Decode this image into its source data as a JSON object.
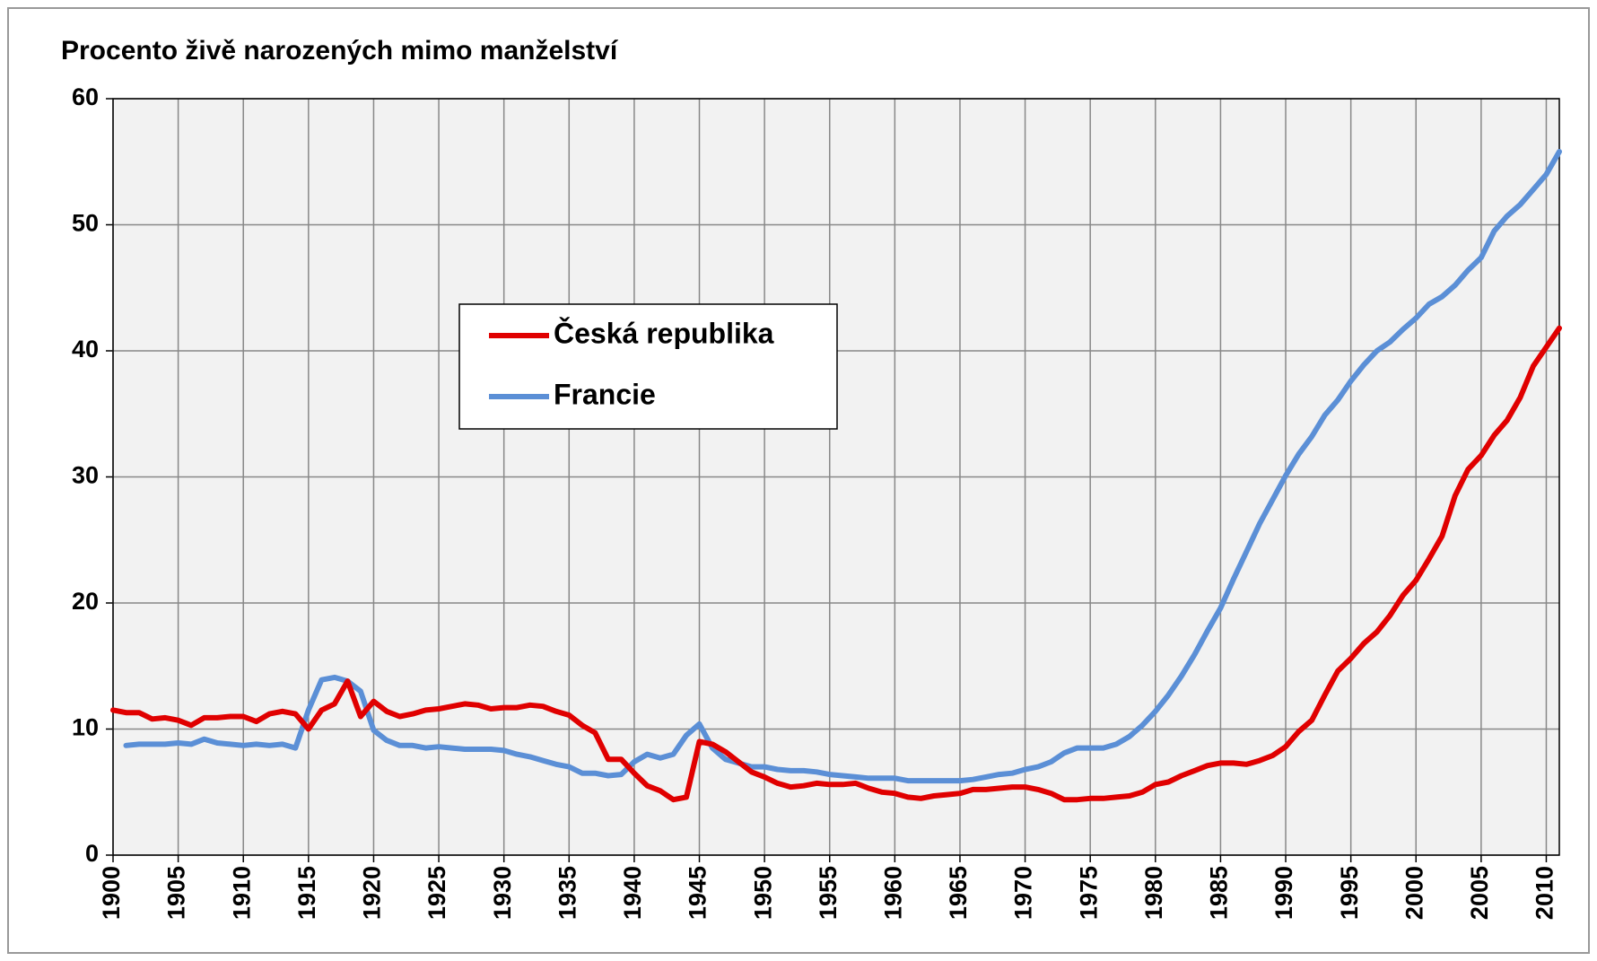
{
  "chart_data": {
    "type": "line",
    "title": "Procento živě narozených mimo manželství",
    "x": [
      1900,
      1901,
      1902,
      1903,
      1904,
      1905,
      1906,
      1907,
      1908,
      1909,
      1910,
      1911,
      1912,
      1913,
      1914,
      1915,
      1916,
      1917,
      1918,
      1919,
      1920,
      1921,
      1922,
      1923,
      1924,
      1925,
      1926,
      1927,
      1928,
      1929,
      1930,
      1931,
      1932,
      1933,
      1934,
      1935,
      1936,
      1937,
      1938,
      1939,
      1940,
      1941,
      1942,
      1943,
      1944,
      1945,
      1946,
      1947,
      1948,
      1949,
      1950,
      1951,
      1952,
      1953,
      1954,
      1955,
      1956,
      1957,
      1958,
      1959,
      1960,
      1961,
      1962,
      1963,
      1964,
      1965,
      1966,
      1967,
      1968,
      1969,
      1970,
      1971,
      1972,
      1973,
      1974,
      1975,
      1976,
      1977,
      1978,
      1979,
      1980,
      1981,
      1982,
      1983,
      1984,
      1985,
      1986,
      1987,
      1988,
      1989,
      1990,
      1991,
      1992,
      1993,
      1994,
      1995,
      1996,
      1997,
      1998,
      1999,
      2000,
      2001,
      2002,
      2003,
      2004,
      2005,
      2006,
      2007,
      2008,
      2009,
      2010,
      2011
    ],
    "series": [
      {
        "name": "Česká republika",
        "color": "#e00000",
        "values": [
          11.5,
          11.3,
          11.3,
          10.8,
          10.9,
          10.7,
          10.3,
          10.9,
          10.9,
          11.0,
          11.0,
          10.6,
          11.2,
          11.4,
          11.2,
          10.0,
          11.5,
          12.0,
          13.8,
          11.0,
          12.2,
          11.4,
          11.0,
          11.2,
          11.5,
          11.6,
          11.8,
          12.0,
          11.9,
          11.6,
          11.7,
          11.7,
          11.9,
          11.8,
          11.4,
          11.1,
          10.3,
          9.7,
          7.6,
          7.6,
          6.5,
          5.5,
          5.1,
          4.4,
          4.6,
          9.0,
          8.8,
          8.2,
          7.4,
          6.6,
          6.2,
          5.7,
          5.4,
          5.5,
          5.7,
          5.6,
          5.6,
          5.7,
          5.3,
          5.0,
          4.9,
          4.6,
          4.5,
          4.7,
          4.8,
          4.9,
          5.2,
          5.2,
          5.3,
          5.4,
          5.4,
          5.2,
          4.9,
          4.4,
          4.4,
          4.5,
          4.5,
          4.6,
          4.7,
          5.0,
          5.6,
          5.8,
          6.3,
          6.7,
          7.1,
          7.3,
          7.3,
          7.2,
          7.5,
          7.9,
          8.6,
          9.8,
          10.7,
          12.7,
          14.6,
          15.6,
          16.8,
          17.7,
          19.0,
          20.6,
          21.8,
          23.5,
          25.3,
          28.5,
          30.6,
          31.7,
          33.3,
          34.5,
          36.3,
          38.8,
          40.3,
          41.8
        ]
      },
      {
        "name": "Francie",
        "color": "#5b8fd6",
        "values": [
          null,
          8.7,
          8.8,
          8.8,
          8.8,
          8.9,
          8.8,
          9.2,
          8.9,
          8.8,
          8.7,
          8.8,
          8.7,
          8.8,
          8.5,
          11.5,
          13.9,
          14.1,
          13.8,
          13.0,
          9.9,
          9.1,
          8.7,
          8.7,
          8.5,
          8.6,
          8.5,
          8.4,
          8.4,
          8.4,
          8.3,
          8.0,
          7.8,
          7.5,
          7.2,
          7.0,
          6.5,
          6.5,
          6.3,
          6.4,
          7.4,
          8.0,
          7.7,
          8.0,
          9.5,
          10.4,
          8.5,
          7.6,
          7.3,
          7.0,
          7.0,
          6.8,
          6.7,
          6.7,
          6.6,
          6.4,
          6.3,
          6.2,
          6.1,
          6.1,
          6.1,
          5.9,
          5.9,
          5.9,
          5.9,
          5.9,
          6.0,
          6.2,
          6.4,
          6.5,
          6.8,
          7.0,
          7.4,
          8.1,
          8.5,
          8.5,
          8.5,
          8.8,
          9.4,
          10.3,
          11.4,
          12.7,
          14.2,
          15.9,
          17.8,
          19.6,
          21.9,
          24.1,
          26.3,
          28.2,
          30.1,
          31.8,
          33.2,
          34.9,
          36.1,
          37.6,
          38.9,
          40.0,
          40.7,
          41.7,
          42.6,
          43.7,
          44.3,
          45.2,
          46.4,
          47.4,
          49.5,
          50.7,
          51.6,
          52.8,
          54.0,
          55.8
        ]
      }
    ],
    "xlim": [
      1900,
      2011
    ],
    "xticks": [
      1900,
      1905,
      1910,
      1915,
      1920,
      1925,
      1930,
      1935,
      1940,
      1945,
      1950,
      1955,
      1960,
      1965,
      1970,
      1975,
      1980,
      1985,
      1990,
      1995,
      2000,
      2005,
      2010
    ],
    "ylim": [
      0,
      60
    ],
    "yticks": [
      0,
      10,
      20,
      30,
      40,
      50,
      60
    ],
    "grid": true
  }
}
